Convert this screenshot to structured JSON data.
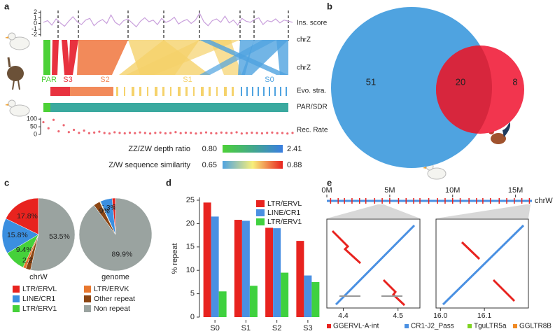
{
  "panel_labels": [
    "a",
    "b",
    "c",
    "d",
    "e"
  ],
  "chart_data": [
    {
      "type": "genome-tracks",
      "tracks": [
        {
          "label": "Ins. score",
          "ylim": [
            -2.3,
            2.3
          ],
          "yticks": [
            2,
            1,
            0,
            -1,
            -2
          ],
          "color": "#c9a0dc",
          "values": [
            0.2,
            0.5,
            -0.3,
            0.8,
            0.1,
            -0.5,
            0.4,
            1.2,
            0.3,
            -0.2,
            0.6,
            0.9,
            -0.4,
            0.3,
            0.7,
            0.0,
            1.5,
            0.2,
            -0.3,
            0.5,
            0.8,
            0.1,
            -0.6,
            0.4,
            1.0,
            0.3,
            0.6,
            -0.2,
            0.9,
            0.2,
            0.5,
            1.1,
            -0.1,
            0.4,
            0.7,
            0.0,
            0.6,
            1.8,
            0.3,
            -0.4,
            0.5,
            0.8,
            0.2,
            1.3,
            0.1,
            0.6,
            -0.3,
            0.9,
            0.4,
            0.2,
            0.7,
            1.0,
            -0.2,
            0.5,
            0.3,
            0.8,
            0.1,
            0.6,
            0.4,
            0.2
          ]
        },
        {
          "label": "chrZ"
        },
        {
          "label": "chrZ"
        },
        {
          "label": "Evo. stra."
        },
        {
          "label": "PAR/SDR"
        },
        {
          "label": "Rec. Rate",
          "ylim": [
            0,
            110
          ],
          "yticks": [
            100,
            50,
            0
          ],
          "color": "#e8414f",
          "values": [
            80,
            40,
            95,
            20,
            60,
            15,
            30,
            10,
            25,
            8,
            12,
            18,
            9,
            6,
            14,
            10,
            7,
            11,
            8,
            13,
            9,
            6,
            10,
            12,
            7,
            9,
            15,
            8,
            11,
            10,
            6,
            9,
            13,
            8,
            7,
            12,
            10,
            9,
            14,
            6,
            8,
            11,
            9,
            7,
            10,
            12,
            8,
            9,
            6,
            10
          ]
        }
      ],
      "strata": [
        {
          "name": "PAR",
          "color": "#4cd137"
        },
        {
          "name": "S3",
          "color": "#e8323f"
        },
        {
          "name": "S2",
          "color": "#f28a5a"
        },
        {
          "name": "S1",
          "color": "#f5d26b"
        },
        {
          "name": "S0",
          "color": "#4fa3e0"
        }
      ],
      "scales": [
        {
          "label": "ZZ/ZW depth ratio",
          "range": [
            {
              "value": 0.8,
              "label": "0.80"
            },
            2.41
          ]
        },
        {
          "label": "Z/W sequence similarity",
          "range": [
            0.65,
            0.88
          ]
        }
      ]
    },
    {
      "type": "venn",
      "values": [
        51,
        20,
        8
      ],
      "colors": [
        "#4fa3e0",
        "#d7263d",
        "#f2354e"
      ]
    },
    {
      "type": "pie",
      "categories": [
        "LTR/ERVL",
        "LINE/CR1",
        "LTR/ERV1",
        "LTR/ERVK",
        "Other repeat",
        "Non repeat"
      ],
      "colors": [
        "#e8231f",
        "#3b8fe0",
        "#45d13a",
        "#e8772e",
        "#8b4513",
        "#9aa3a0"
      ],
      "series": [
        {
          "name": "chrW",
          "values": [
            17.8,
            15.8,
            9.4,
            1.3,
            2.2,
            53.5
          ],
          "value_labels": [
            "17.8%",
            "15.8%",
            "9.4%",
            null,
            "2.2%",
            "53.5%"
          ]
        },
        {
          "name": "genome",
          "values": [
            1.5,
            5.3,
            0.2,
            0.2,
            2.9,
            89.9
          ],
          "value_labels": [
            "1.5%",
            "5.3%",
            null,
            null,
            "2.9%",
            "89.9%"
          ]
        }
      ]
    },
    {
      "type": "bar",
      "ylabel": "% repeat",
      "categories": [
        "S0",
        "S1",
        "S2",
        "S3"
      ],
      "ylim": [
        0,
        25
      ],
      "yticks": [
        0,
        5,
        10,
        15,
        20,
        25
      ],
      "series": [
        {
          "name": "LTR/ERVL",
          "color": "#e8231f",
          "values": [
            24.5,
            20.8,
            19.1,
            16.3
          ]
        },
        {
          "name": "LINE/CR1",
          "color": "#4a90e2",
          "values": [
            21.5,
            20.6,
            19.0,
            8.9
          ]
        },
        {
          "name": "LTR/ERV1",
          "color": "#3fd13f",
          "values": [
            5.5,
            6.7,
            9.5,
            7.5
          ]
        }
      ]
    },
    {
      "type": "dotplot",
      "track": {
        "label": "chrW",
        "xlim": [
          0,
          16.3
        ],
        "xticks": [
          {
            "value": 0,
            "label": "0M"
          },
          {
            "value": 5,
            "label": "5M"
          },
          {
            "value": 10,
            "label": "10M"
          },
          {
            "value": 15,
            "label": "15M"
          }
        ],
        "positions": [
          0.3,
          0.9,
          1.4,
          2.0,
          2.6,
          3.1,
          3.8,
          4.4,
          5.0,
          5.7,
          6.3,
          6.9,
          7.4,
          8.1,
          8.8,
          9.4,
          10.0,
          10.6,
          11.3,
          11.9,
          12.4,
          13.0,
          13.7,
          14.3,
          14.9,
          15.5,
          16.1
        ]
      },
      "plots": [
        {
          "xlim": [
            4.37,
            4.54
          ],
          "xticks": [
            4.4,
            4.5
          ]
        },
        {
          "xlim": [
            15.99,
            16.2
          ],
          "xticks": [
            {
              "value": 16,
              "label": "16.0"
            },
            16.1
          ]
        }
      ],
      "legend": [
        {
          "name": "GGERVL-A-int",
          "color": "#e8231f"
        },
        {
          "name": "CR1-J2_Pass",
          "color": "#4a90e2"
        },
        {
          "name": "TguLTR5a",
          "color": "#7ed321"
        },
        {
          "name": "GGLTR8B",
          "color": "#f08a24"
        }
      ]
    }
  ]
}
